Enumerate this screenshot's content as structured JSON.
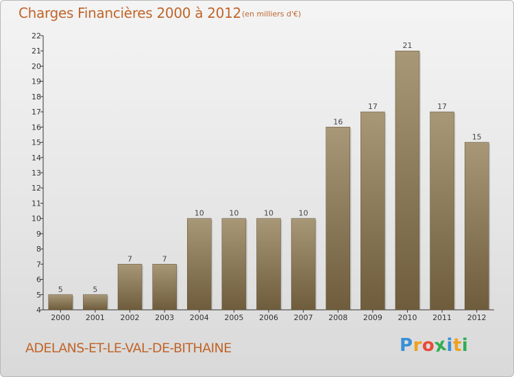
{
  "header": {
    "title": "Charges Financières 2000 à 2012",
    "subtitle": "(en milliers d'€)"
  },
  "footer": {
    "place": "ADELANS-ET-LE-VAL-DE-BITHAINE",
    "logo": [
      "P",
      "r",
      "o",
      "x",
      "i",
      "t",
      "i"
    ],
    "logo_colors": [
      "#3a8fd6",
      "#f0a020",
      "#e84a3a",
      "#2fae52",
      "#3a8fd6",
      "#f0a020",
      "#2fae52"
    ]
  },
  "colors": {
    "bar_top": "#a89878",
    "bar_bottom": "#6e5c3c",
    "accent": "#c0652a"
  },
  "chart_data": {
    "type": "bar",
    "categories": [
      "2000",
      "2001",
      "2002",
      "2003",
      "2004",
      "2005",
      "2006",
      "2007",
      "2008",
      "2009",
      "2010",
      "2011",
      "2012"
    ],
    "values": [
      5,
      5,
      7,
      7,
      10,
      10,
      10,
      10,
      16,
      17,
      21,
      17,
      15
    ],
    "title": "Charges Financières 2000 à 2012",
    "subtitle": "(en milliers d'€)",
    "xlabel": "",
    "ylabel": "",
    "ylim": [
      4,
      22
    ],
    "yticks": [
      4,
      5,
      6,
      7,
      8,
      9,
      10,
      11,
      12,
      13,
      14,
      15,
      16,
      17,
      18,
      19,
      20,
      21,
      22
    ],
    "grid": false,
    "legend": "none",
    "data_labels": true
  }
}
